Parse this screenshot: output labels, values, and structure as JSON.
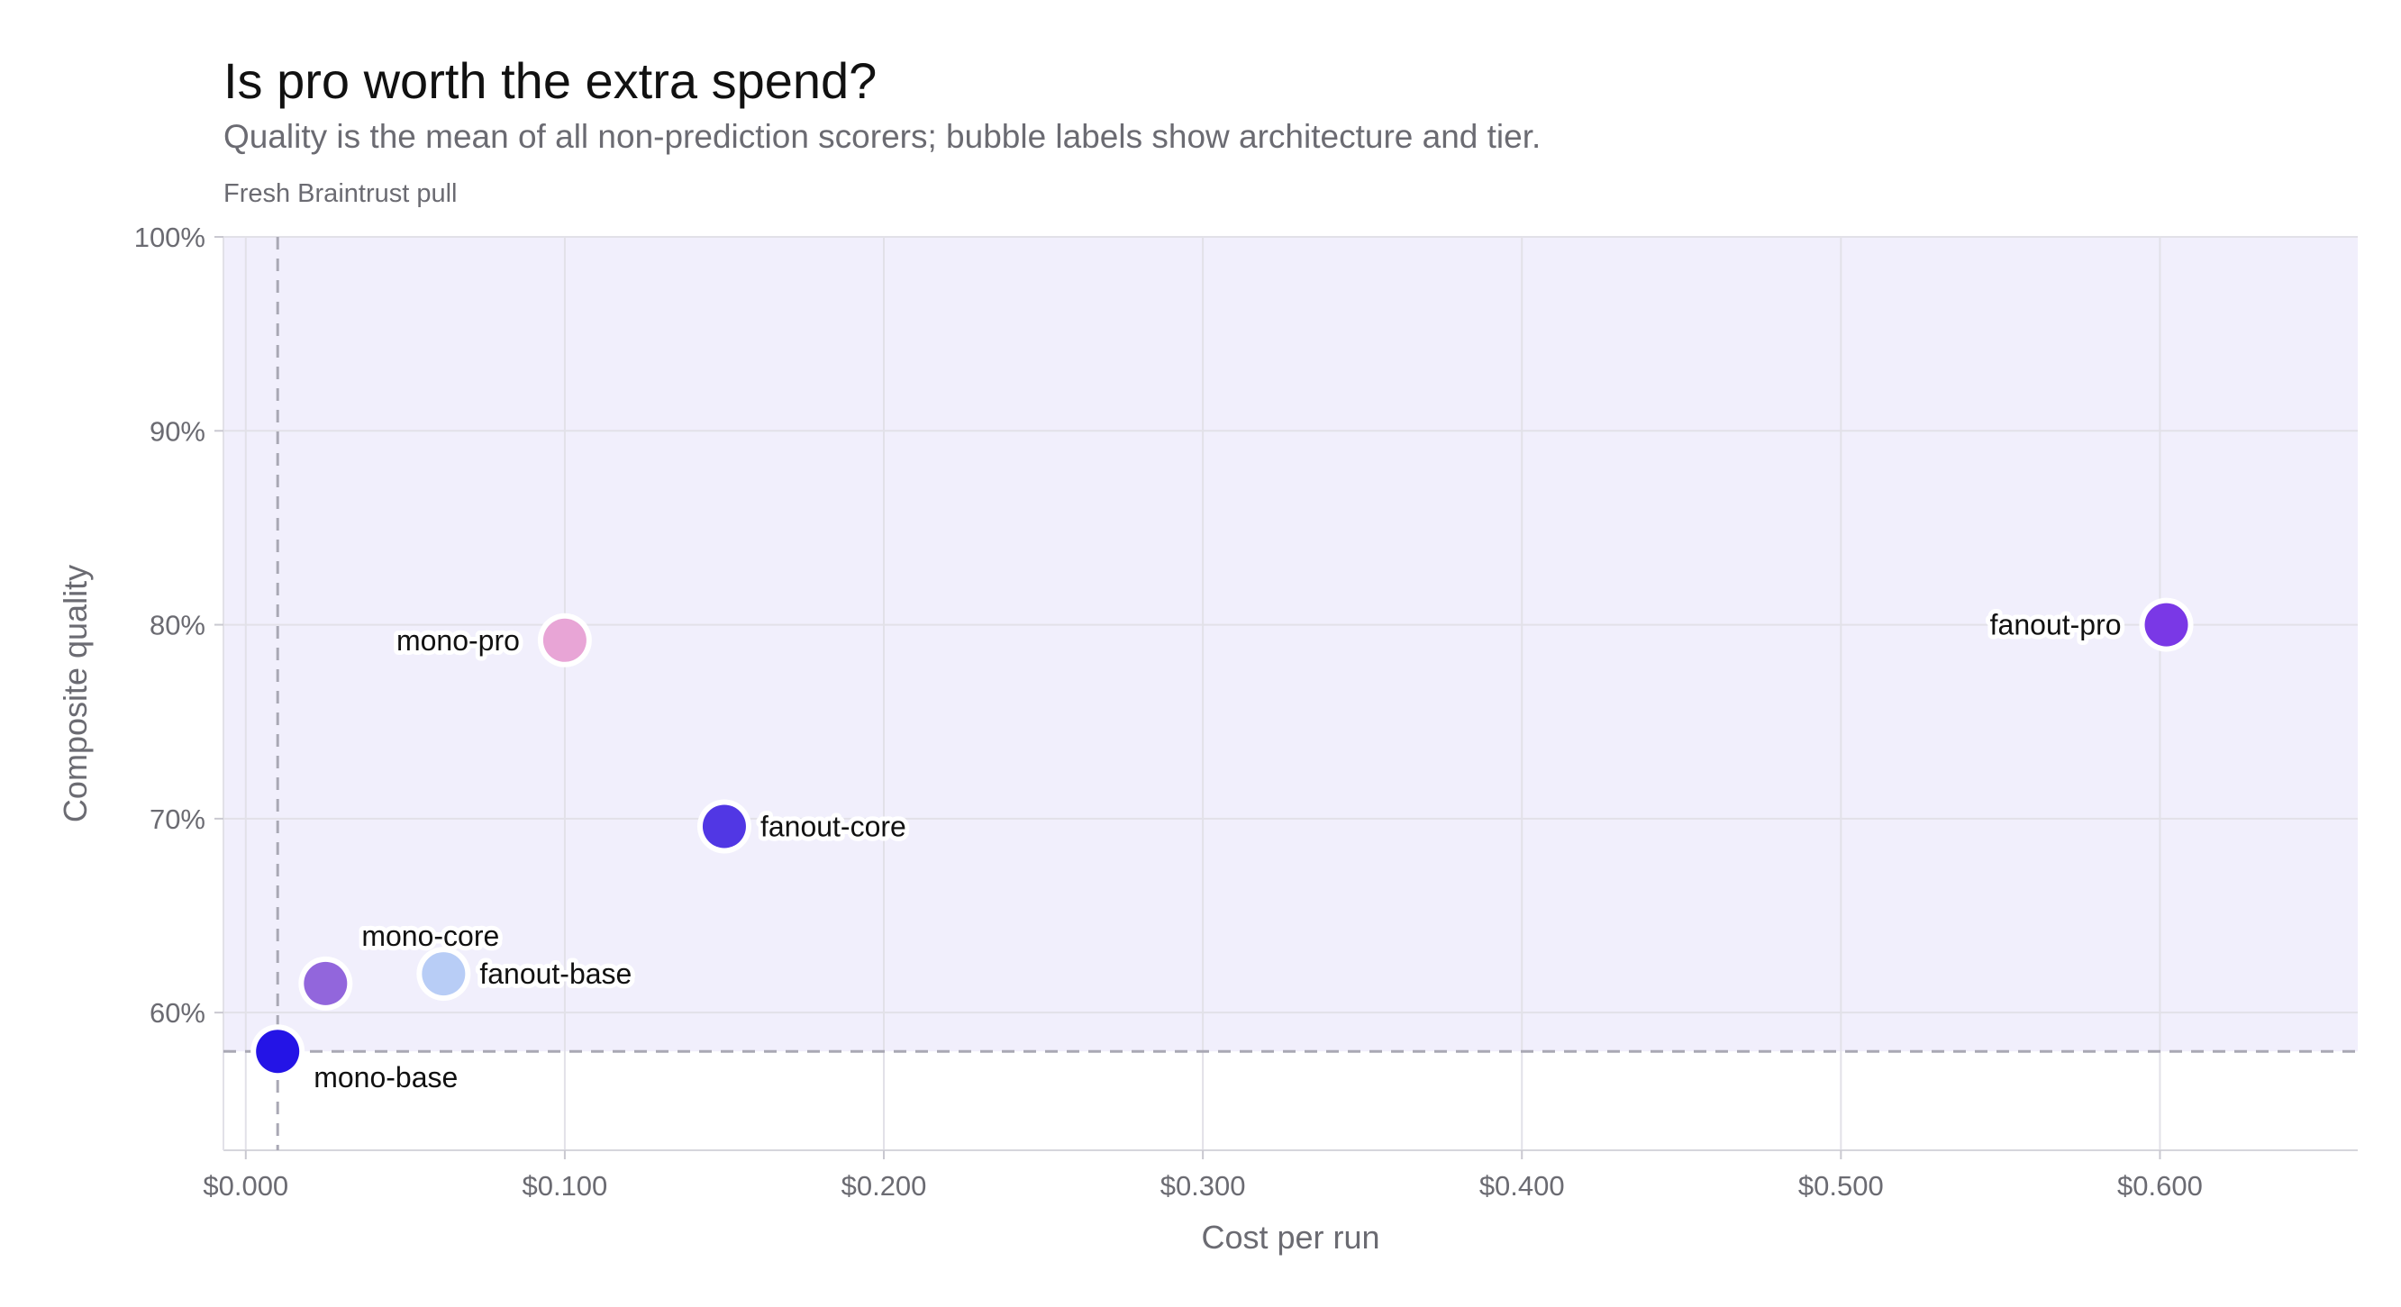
{
  "title": "Is pro worth the extra spend?",
  "subtitle": "Quality is the mean of all non-prediction scorers; bubble labels show architecture and tier.",
  "source_note": "Fresh Braintrust pull",
  "chart_data": {
    "type": "scatter",
    "title": "Is pro worth the extra spend?",
    "xlabel": "Cost per run",
    "ylabel": "Composite quality",
    "xlim": [
      -0.007,
      0.662
    ],
    "ylim": [
      52.9,
      100
    ],
    "x_ticks": [
      0.0,
      0.1,
      0.2,
      0.3,
      0.4,
      0.5,
      0.6
    ],
    "x_tick_labels": [
      "$0.000",
      "$0.100",
      "$0.200",
      "$0.300",
      "$0.400",
      "$0.500",
      "$0.600"
    ],
    "y_ticks": [
      60,
      70,
      80,
      90,
      100
    ],
    "y_tick_labels": [
      "60%",
      "70%",
      "80%",
      "90%",
      "100%"
    ],
    "grid": true,
    "background_color": "#f1effc",
    "reference_lines": {
      "x": 0.01,
      "y": 58.0
    },
    "points": [
      {
        "label": "mono-base",
        "x": 0.01,
        "y": 58.0,
        "color": "#2414e6",
        "label_pos": "below-right"
      },
      {
        "label": "mono-core",
        "x": 0.025,
        "y": 61.5,
        "color": "#9266dc",
        "label_pos": "above-right"
      },
      {
        "label": "fanout-base",
        "x": 0.062,
        "y": 62.0,
        "color": "#b8cdf6",
        "label_pos": "right"
      },
      {
        "label": "mono-pro",
        "x": 0.1,
        "y": 79.2,
        "color": "#e8a5d6",
        "label_pos": "left"
      },
      {
        "label": "fanout-core",
        "x": 0.15,
        "y": 69.6,
        "color": "#5137e4",
        "label_pos": "right"
      },
      {
        "label": "fanout-pro",
        "x": 0.602,
        "y": 80.0,
        "color": "#7a38e6",
        "label_pos": "left"
      }
    ]
  }
}
